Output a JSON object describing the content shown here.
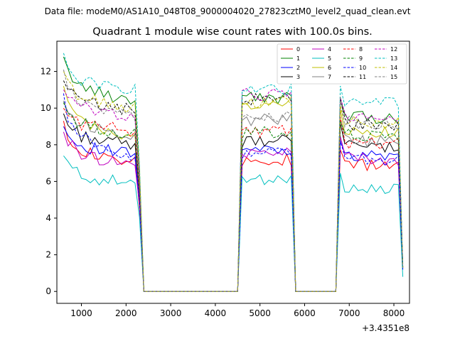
{
  "suptitle": "Data file: modeM0/AS1A10_048T08_9000004020_27823cztM0_level2_quad_clean.evt",
  "chart_data": {
    "type": "line",
    "title": "Quadrant 1 module wise count rates with 100.0s bins.",
    "xlabel": "",
    "ylabel": "",
    "x_offset_label": "+3.4351e8",
    "xlim": [
      450,
      8350
    ],
    "ylim": [
      -0.65,
      13.65
    ],
    "xticks": [
      1000,
      2000,
      3000,
      4000,
      5000,
      6000,
      7000,
      8000
    ],
    "yticks": [
      0,
      2,
      4,
      6,
      8,
      10,
      12
    ],
    "grid": false,
    "legend_position": "top-right",
    "segments": [
      {
        "x": [
          600,
          700,
          800,
          900,
          1000,
          1100,
          1200,
          1300,
          1400,
          1500,
          1600,
          1700,
          1800,
          1900,
          2000,
          2100,
          2200,
          2300,
          2400
        ],
        "shape": [
          1.0,
          0.9,
          0.87,
          0.83,
          0.8,
          0.8,
          0.78,
          0.78,
          0.76,
          0.75,
          0.75,
          0.74,
          0.74,
          0.73,
          0.73,
          0.72,
          0.72,
          0.45,
          0.0
        ]
      },
      {
        "x": [
          2400,
          2500,
          3000,
          3500,
          4000,
          4500
        ],
        "shape": [
          0,
          0,
          0,
          0,
          0,
          0
        ]
      },
      {
        "x": [
          4500,
          4600,
          4700,
          4800,
          4900,
          5000,
          5100,
          5200,
          5300,
          5400,
          5500,
          5600,
          5700,
          5800
        ],
        "shape": [
          0.0,
          0.92,
          0.93,
          0.93,
          0.94,
          0.95,
          0.95,
          0.96,
          0.97,
          0.98,
          0.99,
          0.99,
          1.0,
          0.0
        ]
      },
      {
        "x": [
          5800,
          5900,
          6200,
          6500,
          6700
        ],
        "shape": [
          0,
          0,
          0,
          0,
          0
        ]
      },
      {
        "x": [
          6700,
          6800,
          6900,
          7000,
          7100,
          7200,
          7300,
          7400,
          7500,
          7600,
          7700,
          7800,
          7900,
          8000,
          8100,
          8200
        ],
        "shape": [
          0.0,
          1.0,
          0.95,
          0.92,
          0.9,
          0.89,
          0.88,
          0.87,
          0.87,
          0.86,
          0.86,
          0.85,
          0.85,
          0.84,
          0.84,
          0.12
        ]
      }
    ],
    "series": [
      {
        "name": "0",
        "color": "#ff0000",
        "dash": "solid",
        "start": 9.3,
        "level1": 7.0,
        "level2": 7.2,
        "level3": 7.0,
        "end": 1.3
      },
      {
        "name": "1",
        "color": "#008000",
        "dash": "solid",
        "start": 12.8,
        "level1": 10.5,
        "level2": 10.6,
        "level3": 9.6,
        "end": 1.3
      },
      {
        "name": "2",
        "color": "#0000ff",
        "dash": "solid",
        "start": 9.0,
        "level1": 7.5,
        "level2": 7.8,
        "level3": 7.5,
        "end": 1.2
      },
      {
        "name": "3",
        "color": "#000000",
        "dash": "solid",
        "start": 9.7,
        "level1": 8.0,
        "level2": 8.2,
        "level3": 8.0,
        "end": 1.5
      },
      {
        "name": "4",
        "color": "#bf00bf",
        "dash": "solid",
        "start": 8.7,
        "level1": 7.0,
        "level2": 7.7,
        "level3": 7.3,
        "end": 1.4
      },
      {
        "name": "5",
        "color": "#00bfbf",
        "dash": "solid",
        "start": 7.4,
        "level1": 5.9,
        "level2": 6.2,
        "level3": 5.6,
        "end": 0.8
      },
      {
        "name": "6",
        "color": "#bfbf00",
        "dash": "solid",
        "start": 11.2,
        "level1": 8.4,
        "level2": 10.3,
        "level3": 8.8,
        "end": 1.3
      },
      {
        "name": "7",
        "color": "#808080",
        "dash": "solid",
        "start": 10.4,
        "level1": 8.6,
        "level2": 9.4,
        "level3": 8.3,
        "end": 1.3
      },
      {
        "name": "8",
        "color": "#ff0000",
        "dash": "dashed",
        "start": 10.0,
        "level1": 8.8,
        "level2": 8.8,
        "level3": 8.2,
        "end": 1.3
      },
      {
        "name": "9",
        "color": "#008000",
        "dash": "dashed",
        "start": 10.3,
        "level1": 8.6,
        "level2": 8.7,
        "level3": 8.6,
        "end": 1.3
      },
      {
        "name": "10",
        "color": "#0000ff",
        "dash": "dashed",
        "start": 10.8,
        "level1": 7.4,
        "level2": 7.6,
        "level3": 7.3,
        "end": 1.2
      },
      {
        "name": "11",
        "color": "#000000",
        "dash": "dashed",
        "start": 11.5,
        "level1": 9.9,
        "level2": 10.5,
        "level3": 9.2,
        "end": 1.3
      },
      {
        "name": "12",
        "color": "#bf00bf",
        "dash": "dashed",
        "start": 11.0,
        "level1": 9.6,
        "level2": 10.8,
        "level3": 9.7,
        "end": 1.3
      },
      {
        "name": "13",
        "color": "#00bfbf",
        "dash": "dashed",
        "start": 13.0,
        "level1": 11.0,
        "level2": 11.0,
        "level3": 10.5,
        "end": 1.3
      },
      {
        "name": "14",
        "color": "#bfbf00",
        "dash": "dashed",
        "start": 12.0,
        "level1": 10.0,
        "level2": 10.4,
        "level3": 9.3,
        "end": 1.3
      },
      {
        "name": "15",
        "color": "#808080",
        "dash": "dashed",
        "start": 12.1,
        "level1": 9.5,
        "level2": 9.5,
        "level3": 9.3,
        "end": 1.3
      }
    ]
  }
}
